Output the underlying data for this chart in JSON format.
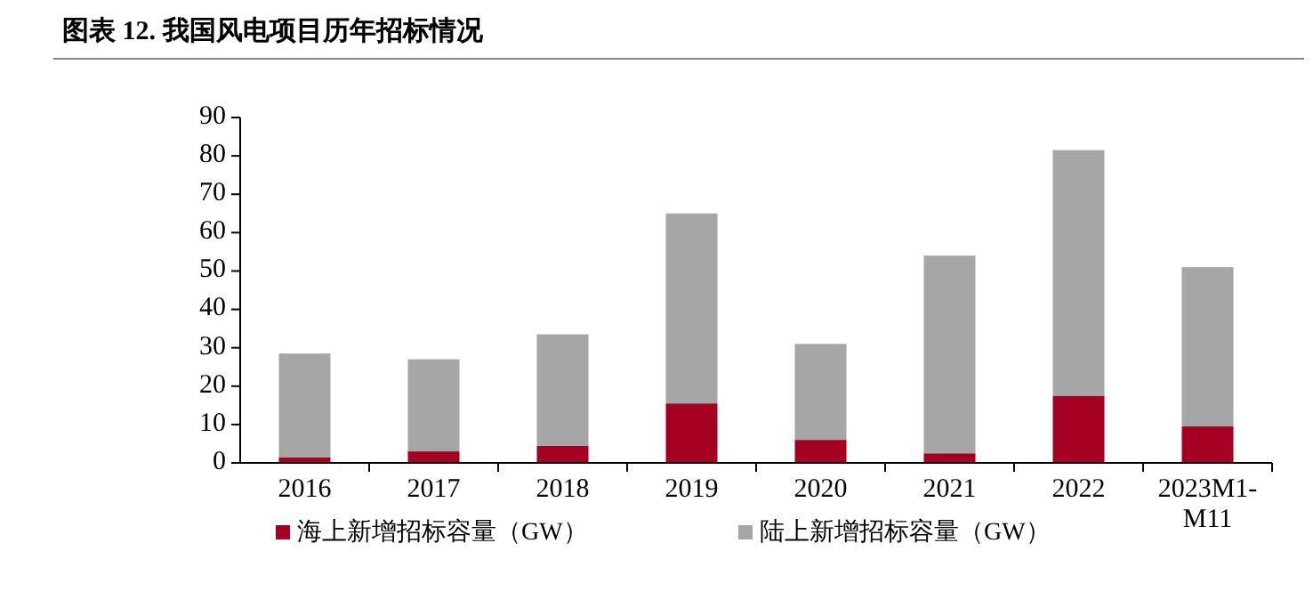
{
  "chart_data": {
    "type": "bar",
    "title": "图表 12. 我国风电项目历年招标情况",
    "categories": [
      "2016",
      "2017",
      "2018",
      "2019",
      "2020",
      "2021",
      "2022",
      "2023M1-\nM11"
    ],
    "stacked": true,
    "series": [
      {
        "name": "海上新增招标容量（GW）",
        "color": "#a50021",
        "values": [
          1.5,
          3,
          4.5,
          15.5,
          6,
          2.5,
          17.5,
          9.5
        ]
      },
      {
        "name": "陆上新增招标容量（GW）",
        "color": "#a6a6a6",
        "values": [
          27,
          24,
          29,
          49.5,
          25,
          51.5,
          64,
          41.5
        ]
      }
    ],
    "ylim": [
      0,
      90
    ],
    "yticks": [
      0,
      10,
      20,
      30,
      40,
      50,
      60,
      70,
      80,
      90
    ],
    "grid": false,
    "legend": "bottom"
  }
}
